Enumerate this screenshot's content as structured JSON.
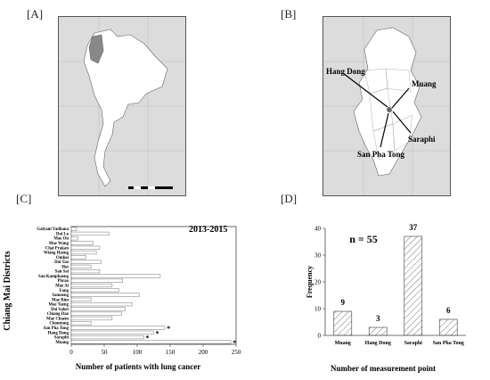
{
  "panels": {
    "a": "[A]",
    "b": "[B]",
    "c": "[C]",
    "d": "[D]"
  },
  "map_b_labels": {
    "hang_dong": "Hang Dong",
    "muang": "Muang",
    "saraphi": "Saraphi",
    "san_pha_tong": "San Pha Tong"
  },
  "colors": {
    "bar_fill": "#ffffff",
    "bar_stroke": "#888888",
    "map_land": "#ffffff",
    "map_sea": "#d9d9d9",
    "hatch": "#777777"
  },
  "chart_data": [
    {
      "type": "bar",
      "orientation": "horizontal",
      "annotation": "2013-2015",
      "xlabel": "Number of patients with lung cancer",
      "ylabel": "Chiang Mai Districts",
      "xlim": [
        0,
        250
      ],
      "xticks": [
        "0",
        "50",
        "100",
        "150",
        "200",
        "250"
      ],
      "categories": [
        "Galyani Vadhana",
        "Doi Lo",
        "Mae On",
        "Mae Wang",
        "Chai Prakan",
        "Wiang Haeng",
        "Omkoi",
        "Doi Tao",
        "Hot",
        "San Sai",
        "San Kamphaeng",
        "Phrao",
        "Mae Ai",
        "Fang",
        "Samoeng",
        "Mae Rim",
        "Mae Taeng",
        "Doi Saket",
        "Chiang Dao",
        "Mae Chaem",
        "Chomtong",
        "San Pha Tong",
        "Hang Dong",
        "Saraphi",
        "Muang"
      ],
      "values": [
        8,
        57,
        10,
        33,
        43,
        38,
        22,
        45,
        30,
        43,
        135,
        78,
        62,
        72,
        103,
        30,
        92,
        82,
        76,
        62,
        30,
        142,
        125,
        110,
        242
      ],
      "marked": [
        "San Pha Tong",
        "Hang Dong",
        "Saraphi",
        "Muang"
      ],
      "marker": "*"
    },
    {
      "type": "bar",
      "annotation": "n = 55",
      "xlabel": "Number of measurement point",
      "ylabel": "Frequency",
      "ylim": [
        0,
        40
      ],
      "yticks": [
        "0",
        "10",
        "20",
        "30",
        "40"
      ],
      "categories": [
        "Muang",
        "Hang Dong",
        "Saraphi",
        "San Pha Tong"
      ],
      "values": [
        9,
        3,
        37,
        6
      ]
    }
  ]
}
